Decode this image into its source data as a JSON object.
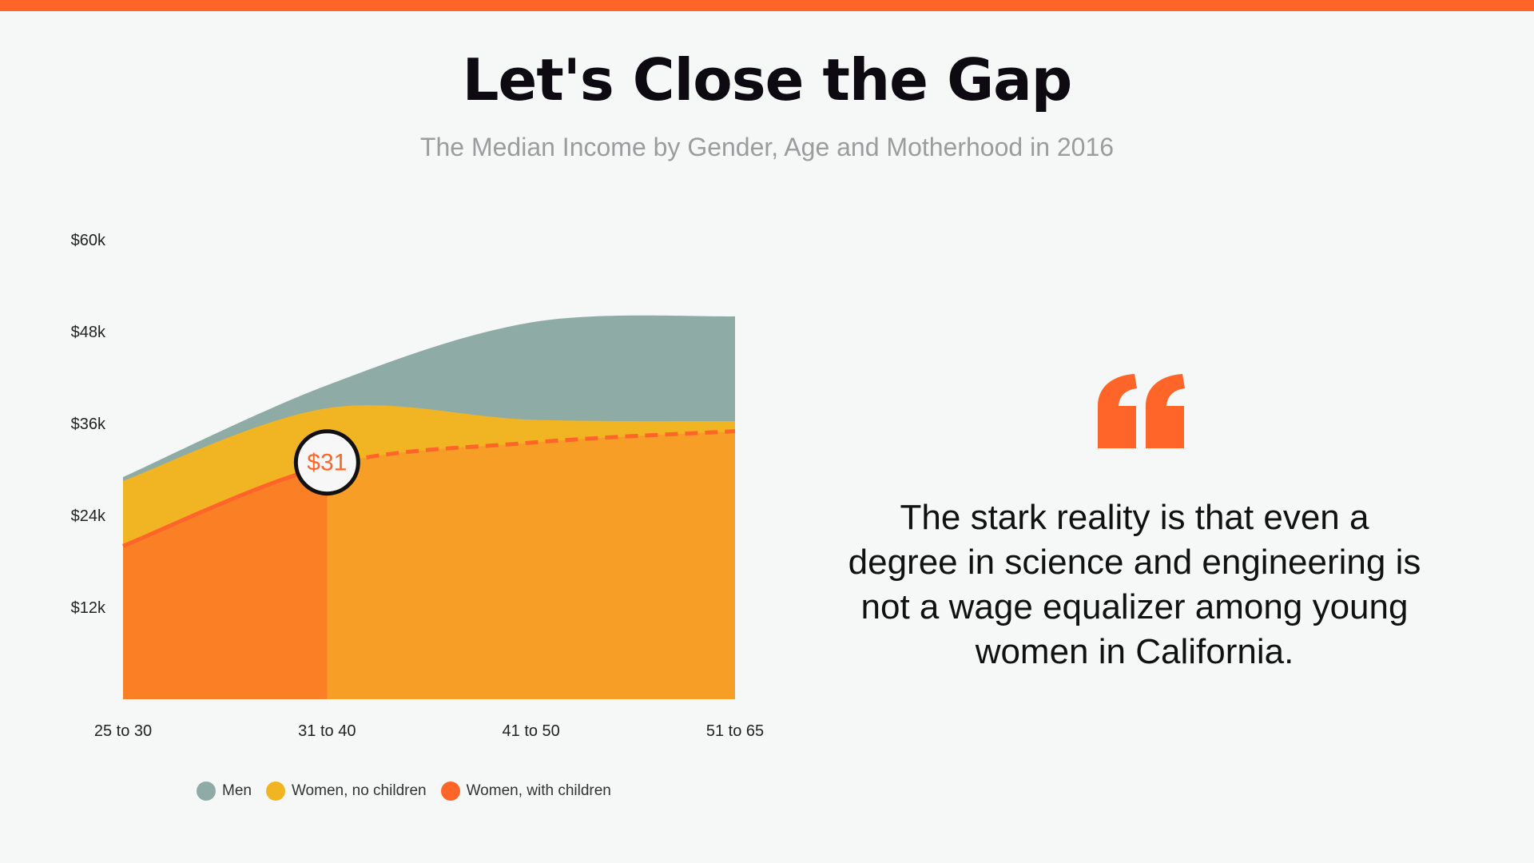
{
  "title": "Let's Close the Gap",
  "subtitle": "The Median Income by Gender, Age and Motherhood in 2016",
  "quote": "The stark reality is that even a degree in science and engineering is not a wage equalizer among young women in California.",
  "quote_icon": "quotation-mark-icon",
  "colors": {
    "accent": "#ff6428",
    "men": "#8eaca5",
    "women_no_children": "#f1b524",
    "women_with_children": "#fb7f25",
    "women_with_children_projected": "#f69e26"
  },
  "chart_data": {
    "type": "area",
    "title": "",
    "xlabel": "",
    "ylabel": "",
    "categories": [
      "25 to 30",
      "31 to 40",
      "41 to 50",
      "51 to 65"
    ],
    "y_ticks": [
      "$12k",
      "$24k",
      "$36k",
      "$48k",
      "$60k"
    ],
    "ylim": [
      0,
      60000
    ],
    "grid": false,
    "legend_position": "bottom-left",
    "series": [
      {
        "name": "Men",
        "values": [
          29000,
          41000,
          49200,
          50000
        ]
      },
      {
        "name": "Women, no children",
        "values": [
          28500,
          38000,
          36500,
          36300
        ]
      },
      {
        "name": "Women, with children",
        "values": [
          20000,
          30500,
          33500,
          35000
        ]
      }
    ],
    "annotation": {
      "category": "31 to 40",
      "label": "$31"
    }
  }
}
